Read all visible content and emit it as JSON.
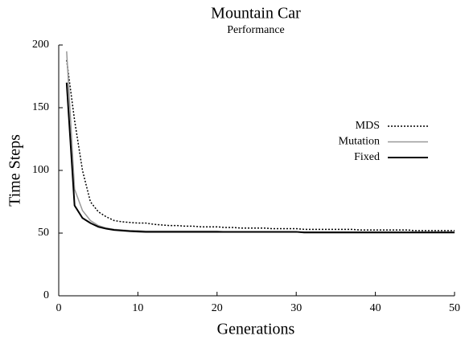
{
  "chart_data": {
    "type": "line",
    "title": "Mountain Car",
    "subtitle": "Performance",
    "x_label": "Generations",
    "y_label": "Time Steps",
    "x": [
      1,
      2,
      3,
      4,
      5,
      6,
      7,
      8,
      9,
      10,
      11,
      12,
      13,
      14,
      15,
      16,
      17,
      18,
      19,
      20,
      21,
      22,
      23,
      24,
      25,
      26,
      27,
      28,
      29,
      30,
      31,
      32,
      33,
      34,
      35,
      36,
      37,
      38,
      39,
      40,
      41,
      42,
      43,
      44,
      45,
      46,
      47,
      48,
      49,
      50
    ],
    "series": [
      {
        "name": "MDS",
        "color": "#000000",
        "dash": "dotted",
        "width": 1.5,
        "values": [
          188,
          140,
          100,
          75,
          67,
          63,
          60,
          59,
          58.5,
          58,
          58,
          57,
          56.5,
          56,
          56,
          55.5,
          55.5,
          55,
          55,
          55,
          54.5,
          54.5,
          54,
          54,
          54,
          54,
          53.5,
          53.5,
          53.5,
          53.5,
          53,
          53,
          53,
          53,
          53,
          53,
          53,
          52.5,
          52.5,
          52.5,
          52.5,
          52.5,
          52.5,
          52.5,
          52,
          52,
          52,
          52,
          52,
          52
        ]
      },
      {
        "name": "Mutation",
        "color": "#999999",
        "dash": "solid",
        "width": 1.5,
        "values": [
          195,
          85,
          68,
          60,
          56,
          54,
          53,
          52.5,
          52,
          52,
          51.5,
          51.5,
          51.5,
          51.5,
          51.5,
          51.5,
          51.5,
          51.5,
          51.5,
          51.5,
          51,
          51,
          51,
          51,
          51,
          51,
          51,
          51,
          51,
          51,
          51,
          51,
          51,
          51,
          51,
          51,
          51,
          51,
          51,
          51,
          51,
          51,
          51,
          51,
          51,
          51,
          51,
          51,
          51,
          51
        ]
      },
      {
        "name": "Fixed",
        "color": "#000000",
        "dash": "solid",
        "width": 2,
        "values": [
          170,
          72,
          62,
          58,
          55,
          53.5,
          52.5,
          52,
          51.5,
          51.2,
          51,
          51,
          51,
          51,
          51,
          51,
          51,
          51,
          51,
          51,
          51,
          51,
          51,
          51,
          51,
          51,
          51,
          51,
          51,
          51,
          50.5,
          50.5,
          50.5,
          50.5,
          50.5,
          50.5,
          50.5,
          50.5,
          50.5,
          50.5,
          50.5,
          50.5,
          50.5,
          50.5,
          50.5,
          50.5,
          50.5,
          50.5,
          50.5,
          50.5
        ]
      }
    ],
    "xlim": [
      0,
      50
    ],
    "xticks": [
      0,
      10,
      20,
      30,
      40,
      50
    ],
    "ylim": [
      0,
      200
    ],
    "yticks": [
      0,
      50,
      100,
      150,
      200
    ],
    "grid": false,
    "legend": "right"
  }
}
